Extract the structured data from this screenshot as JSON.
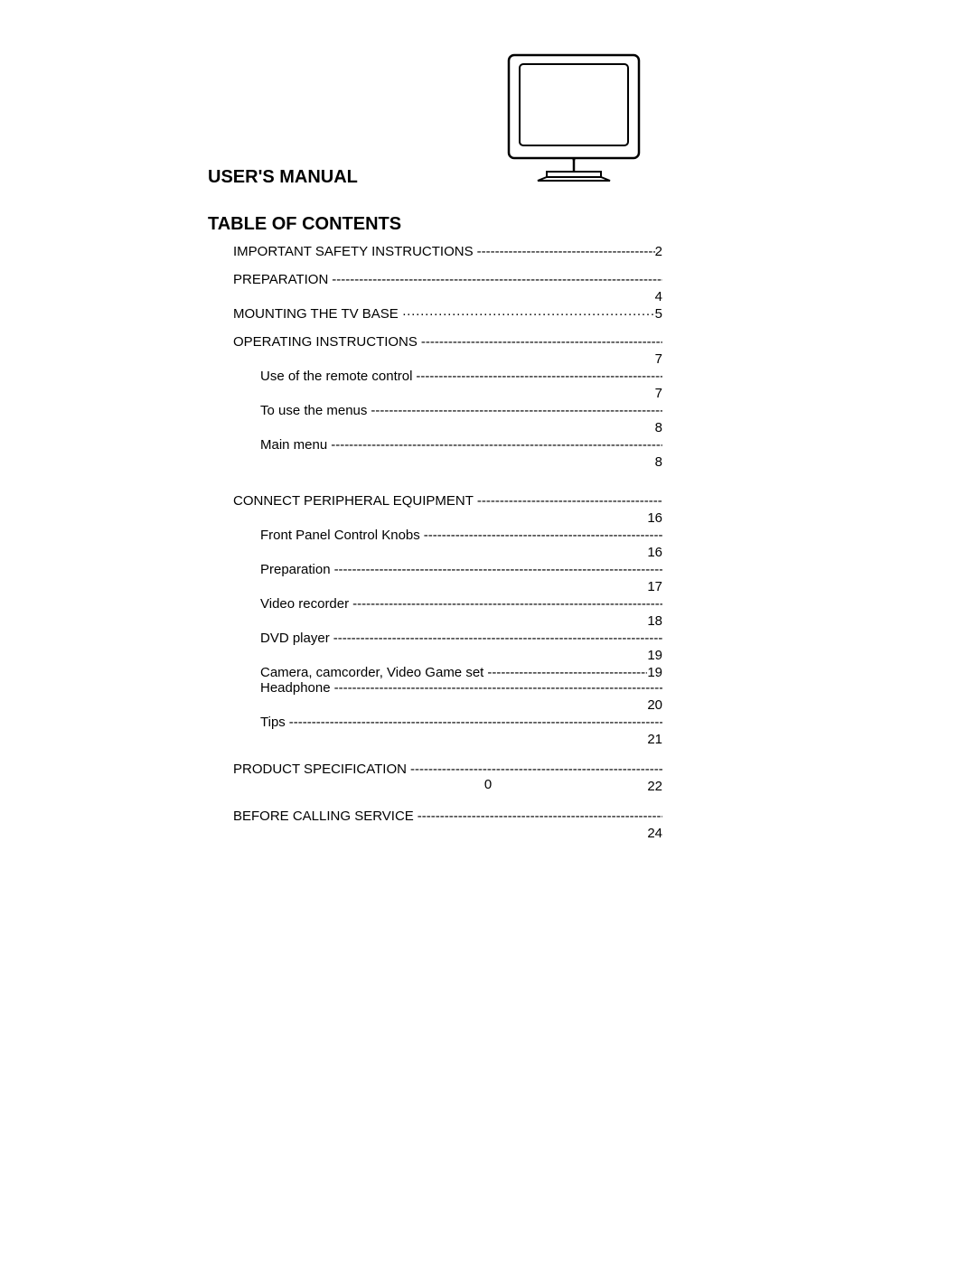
{
  "header": {
    "title": "USER'S MANUAL",
    "section": "TABLE OF CONTENTS"
  },
  "monitor": {
    "stroke": "#000000",
    "fill": "#ffffff",
    "stroke_width": 2
  },
  "toc": [
    {
      "label": "IMPORTANT SAFETY INSTRUCTIONS",
      "page": "2",
      "level": "main",
      "leader": "dash",
      "page_inline": true,
      "page_below": false
    },
    {
      "label": "PREPARATION",
      "page": "4",
      "level": "main",
      "leader": "dash",
      "page_inline": false,
      "page_below": true,
      "spacer_before": "md"
    },
    {
      "label": "MOUNTING THE TV BASE",
      "page": "5",
      "level": "main",
      "leader": "dot",
      "page_inline": true,
      "page_below": false
    },
    {
      "label": "OPERATING INSTRUCTIONS",
      "page": "7",
      "level": "main",
      "leader": "dash",
      "page_inline": false,
      "page_below": true,
      "spacer_before": "md"
    },
    {
      "label": "Use of the remote control",
      "page": "7",
      "level": "sub",
      "leader": "dash",
      "page_inline": false,
      "page_below": true
    },
    {
      "label": "To use the menus",
      "page": "8",
      "level": "sub",
      "leader": "dash",
      "page_inline": false,
      "page_below": true
    },
    {
      "label": "Main menu",
      "page": "8",
      "level": "sub",
      "leader": "dash",
      "page_inline": false,
      "page_below": true
    },
    {
      "label": "CONNECT PERIPHERAL EQUIPMENT",
      "page": "16",
      "level": "main",
      "leader": "dash",
      "page_inline": false,
      "page_below": true,
      "spacer_before": "lg"
    },
    {
      "label": "Front Panel Control Knobs",
      "page": "16",
      "level": "sub",
      "leader": "dash",
      "page_inline": false,
      "page_below": true
    },
    {
      "label": "Preparation",
      "page": "17",
      "level": "sub",
      "leader": "dash",
      "page_inline": false,
      "page_below": true
    },
    {
      "label": "Video recorder",
      "page": "18",
      "level": "sub",
      "leader": "dash",
      "page_inline": false,
      "page_below": true
    },
    {
      "label": "DVD player",
      "page": "19",
      "level": "sub",
      "leader": "dash",
      "page_inline": false,
      "page_below": true
    },
    {
      "label": "Camera, camcorder, Video Game set",
      "page": "19",
      "level": "sub",
      "leader": "dash",
      "page_inline": true,
      "page_below": false
    },
    {
      "label": "Headphone",
      "page": "20",
      "level": "sub",
      "leader": "dash",
      "page_inline": false,
      "page_below": true
    },
    {
      "label": "Tips",
      "page": "21",
      "level": "sub",
      "leader": "dash",
      "page_inline": false,
      "page_below": true
    },
    {
      "label": "PRODUCT SPECIFICATION",
      "page": "22",
      "level": "main",
      "leader": "dash",
      "page_inline": false,
      "page_below": true,
      "spacer_before": "md"
    },
    {
      "label": "BEFORE CALLING SERVICE",
      "page": "24",
      "level": "main",
      "leader": "dash",
      "page_inline": false,
      "page_below": true,
      "spacer_before": "md"
    }
  ],
  "page_number": "0"
}
